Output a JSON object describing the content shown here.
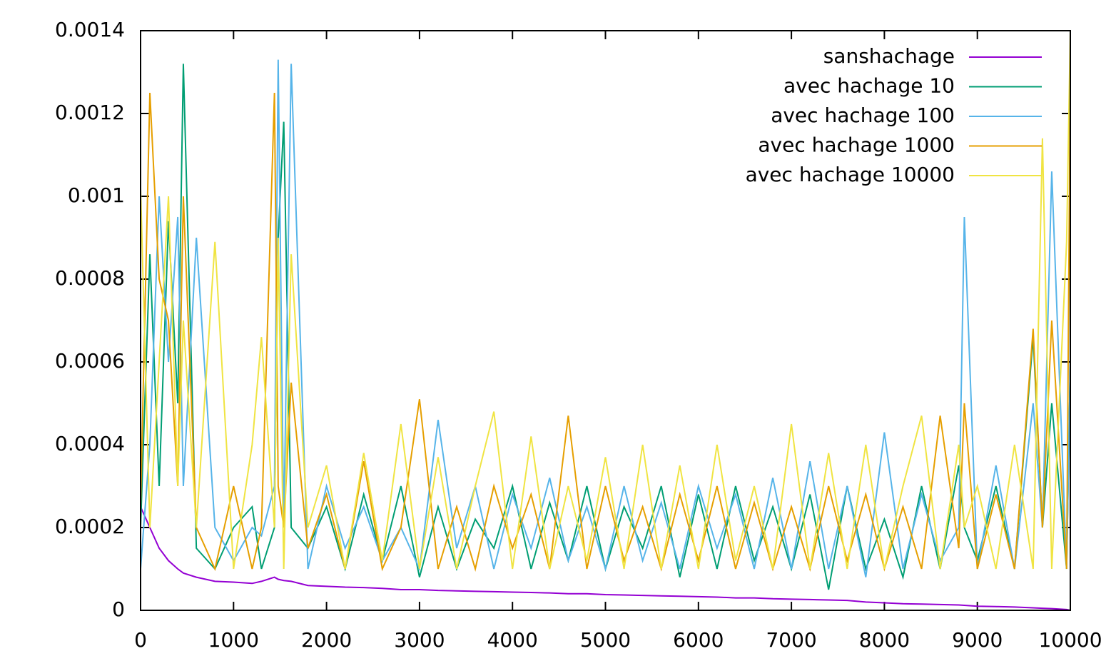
{
  "chart_data": {
    "type": "line",
    "x": [
      0,
      100,
      200,
      300,
      400,
      460,
      600,
      800,
      1000,
      1200,
      1300,
      1440,
      1480,
      1540,
      1620,
      1800,
      2000,
      2200,
      2400,
      2600,
      2800,
      3000,
      3200,
      3400,
      3600,
      3800,
      4000,
      4200,
      4400,
      4600,
      4800,
      5000,
      5200,
      5400,
      5600,
      5800,
      6000,
      6200,
      6400,
      6600,
      6800,
      7000,
      7200,
      7400,
      7600,
      7800,
      8000,
      8200,
      8400,
      8600,
      8800,
      8860,
      9000,
      9200,
      9400,
      9600,
      9700,
      9800,
      9960,
      10000
    ],
    "xlim": [
      0,
      10000
    ],
    "xticks": [
      0,
      1000,
      2000,
      3000,
      4000,
      5000,
      6000,
      7000,
      8000,
      9000,
      10000
    ],
    "ylim": [
      0,
      0.0014
    ],
    "yticks": [
      0,
      0.0002,
      0.0004,
      0.0006,
      0.0008,
      0.001,
      0.0012,
      0.0014
    ],
    "legend": "upper right",
    "series": [
      {
        "name": "sanshachage",
        "color": "#9400d3",
        "values": [
          0.00025,
          0.0002,
          0.00015,
          0.00012,
          0.0001,
          9e-05,
          8e-05,
          7e-05,
          6.8e-05,
          6.5e-05,
          7e-05,
          8e-05,
          7.5e-05,
          7.2e-05,
          7e-05,
          6e-05,
          5.8e-05,
          5.6e-05,
          5.5e-05,
          5.3e-05,
          5e-05,
          5e-05,
          4.8e-05,
          4.7e-05,
          4.6e-05,
          4.5e-05,
          4.4e-05,
          4.3e-05,
          4.2e-05,
          4e-05,
          4e-05,
          3.8e-05,
          3.7e-05,
          3.6e-05,
          3.5e-05,
          3.4e-05,
          3.3e-05,
          3.2e-05,
          3e-05,
          3e-05,
          2.8e-05,
          2.7e-05,
          2.6e-05,
          2.5e-05,
          2.4e-05,
          2e-05,
          1.8e-05,
          1.6e-05,
          1.5e-05,
          1.4e-05,
          1.3e-05,
          1.2e-05,
          1e-05,
          9e-06,
          8e-06,
          6e-06,
          5e-06,
          4e-06,
          2e-06,
          0
        ]
      },
      {
        "name": "avec hachage 10",
        "color": "#009e73",
        "values": [
          0.0002,
          0.00086,
          0.0003,
          0.00094,
          0.0005,
          0.00132,
          0.00015,
          0.0001,
          0.0002,
          0.00025,
          0.0001,
          0.0002,
          0.0009,
          0.00118,
          0.0002,
          0.00015,
          0.00025,
          0.0001,
          0.00028,
          0.00012,
          0.0003,
          8e-05,
          0.00025,
          0.0001,
          0.00022,
          0.00015,
          0.0003,
          0.0001,
          0.00026,
          0.00012,
          0.0003,
          0.0001,
          0.00025,
          0.00015,
          0.0003,
          8e-05,
          0.00028,
          0.0001,
          0.0003,
          0.00012,
          0.00025,
          0.0001,
          0.00028,
          5e-05,
          0.0003,
          0.0001,
          0.00022,
          8e-05,
          0.0003,
          0.0001,
          0.00035,
          0.0002,
          0.00012,
          0.0003,
          0.0001,
          0.00066,
          0.0002,
          0.0005,
          0.0001,
          0.0006
        ]
      },
      {
        "name": "avec hachage 100",
        "color": "#56b4e9",
        "values": [
          0.0001,
          0.0004,
          0.001,
          0.0006,
          0.00095,
          0.0003,
          0.0009,
          0.0002,
          0.00012,
          0.0002,
          0.00018,
          0.0003,
          0.00133,
          0.0002,
          0.00132,
          0.0001,
          0.0003,
          0.00015,
          0.00025,
          0.00012,
          0.0002,
          0.0001,
          0.00046,
          0.00015,
          0.0003,
          0.0001,
          0.00028,
          0.00015,
          0.00032,
          0.00012,
          0.00025,
          0.0001,
          0.0003,
          0.00012,
          0.00026,
          0.0001,
          0.0003,
          0.00015,
          0.00028,
          0.0001,
          0.00032,
          0.0001,
          0.00036,
          0.0001,
          0.0003,
          8e-05,
          0.00043,
          0.0001,
          0.00028,
          0.00012,
          0.0002,
          0.00095,
          0.0001,
          0.00035,
          0.0001,
          0.0005,
          0.0002,
          0.00106,
          0.0001,
          0.0006
        ]
      },
      {
        "name": "avec hachage 1000",
        "color": "#e69f00",
        "values": [
          0.00025,
          0.00125,
          0.0008,
          0.0007,
          0.0003,
          0.001,
          0.0002,
          0.0001,
          0.0003,
          0.0001,
          0.0002,
          0.00125,
          0.0003,
          0.0002,
          0.00055,
          0.00015,
          0.00028,
          0.0001,
          0.00036,
          0.0001,
          0.0002,
          0.00051,
          0.0001,
          0.00025,
          0.0001,
          0.0003,
          0.00015,
          0.00028,
          0.0001,
          0.00047,
          0.0001,
          0.0003,
          0.00012,
          0.00025,
          0.0001,
          0.00028,
          0.00012,
          0.0003,
          0.0001,
          0.00026,
          0.0001,
          0.00025,
          0.0001,
          0.0003,
          0.00012,
          0.00028,
          0.0001,
          0.00025,
          0.0001,
          0.00047,
          0.00015,
          0.0005,
          0.0001,
          0.00028,
          0.0001,
          0.00068,
          0.0002,
          0.0007,
          0.0001,
          0.0013
        ]
      },
      {
        "name": "avec hachage 10000",
        "color": "#f0e442",
        "values": [
          0.00102,
          0.0002,
          0.0006,
          0.001,
          0.0003,
          0.0007,
          0.0002,
          0.00089,
          0.0001,
          0.0004,
          0.00066,
          0.0002,
          0.0009,
          0.0001,
          0.00086,
          0.0002,
          0.00035,
          0.0001,
          0.00038,
          0.00012,
          0.00045,
          0.0001,
          0.00037,
          0.0001,
          0.0003,
          0.00048,
          0.0001,
          0.00042,
          0.0001,
          0.0003,
          0.00012,
          0.00037,
          0.0001,
          0.0004,
          0.0001,
          0.00035,
          0.0001,
          0.0004,
          0.00012,
          0.0003,
          0.0001,
          0.00045,
          0.0001,
          0.00038,
          0.0001,
          0.0004,
          0.0001,
          0.0003,
          0.00047,
          0.0001,
          0.0004,
          0.0002,
          0.0003,
          0.0001,
          0.0004,
          0.0001,
          0.00114,
          0.0001,
          0.00089,
          0.0014
        ]
      }
    ]
  }
}
